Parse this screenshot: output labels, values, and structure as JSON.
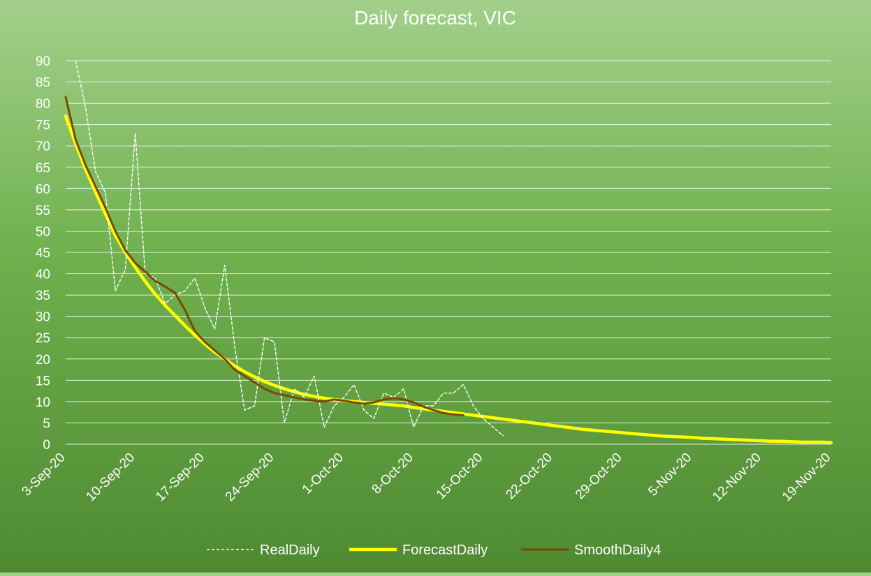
{
  "chart_data": {
    "type": "line",
    "title": "Daily forecast, VIC",
    "xlabel": "",
    "ylabel": "",
    "ylim": [
      0,
      90
    ],
    "yticks": [
      0,
      5,
      10,
      15,
      20,
      25,
      30,
      35,
      40,
      45,
      50,
      55,
      60,
      65,
      70,
      75,
      80,
      85,
      90
    ],
    "x_range": [
      "3-Sep-20",
      "19-Nov-20"
    ],
    "xtick_labels": [
      "3-Sep-20",
      "10-Sep-20",
      "17-Sep-20",
      "24-Sep-20",
      "1-Oct-20",
      "8-Oct-20",
      "15-Oct-20",
      "22-Oct-20",
      "29-Oct-20",
      "5-Nov-20",
      "12-Nov-20",
      "19-Nov-20"
    ],
    "grid": true,
    "legend_position": "bottom",
    "series": [
      {
        "name": "RealDaily",
        "color": "#ffffff",
        "style": "dashed",
        "start_date": "4-Sep-20",
        "values": [
          90,
          79,
          64,
          59,
          36,
          41,
          73,
          40,
          39,
          33,
          35,
          36,
          39,
          32,
          27,
          42,
          23,
          8,
          9,
          25,
          24,
          5,
          13,
          11,
          16,
          4,
          9,
          11,
          14,
          8,
          6,
          12,
          11,
          13,
          4,
          9,
          9,
          12,
          12,
          14,
          9,
          6,
          4,
          2
        ]
      },
      {
        "name": "ForecastDaily",
        "color": "#ffff00",
        "style": "solid",
        "start_date": "3-Sep-20",
        "values": [
          77,
          70.5,
          64.5,
          59.2,
          54,
          49,
          45,
          41.5,
          38.2,
          35.2,
          32.6,
          30.2,
          27.8,
          25.6,
          23.5,
          21.6,
          20,
          18.4,
          17,
          15.8,
          14.7,
          13.8,
          13,
          12.3,
          11.7,
          11.2,
          10.8,
          10.5,
          10.2,
          10,
          9.8,
          9.6,
          9.4,
          9.2,
          9,
          8.6,
          8.3,
          8,
          7.7,
          7.4,
          7.1,
          6.8,
          6.5,
          6.2,
          5.9,
          5.6,
          5.3,
          5,
          4.7,
          4.4,
          4.1,
          3.8,
          3.5,
          3.3,
          3.1,
          2.9,
          2.7,
          2.5,
          2.3,
          2.1,
          1.9,
          1.8,
          1.7,
          1.6,
          1.4,
          1.3,
          1.2,
          1.1,
          1,
          0.9,
          0.8,
          0.7,
          0.7,
          0.6,
          0.5,
          0.5,
          0.5,
          0.4
        ]
      },
      {
        "name": "SmoothDaily4",
        "color": "#7a4a00",
        "style": "solid",
        "start_date": "3-Sep-20",
        "values": [
          81.5,
          71.5,
          65.5,
          60.5,
          55.5,
          50,
          45.5,
          42.5,
          40.5,
          38.3,
          37,
          35.5,
          31.5,
          26.5,
          24,
          22,
          20,
          17.5,
          16,
          14.5,
          13,
          12,
          11.5,
          11,
          10.5,
          10.2,
          10,
          10.5,
          10.2,
          9.8,
          9.5,
          9.8,
          10.5,
          10.8,
          10.5,
          9.8,
          8.8,
          8,
          7.3,
          7,
          6.8
        ]
      }
    ]
  }
}
